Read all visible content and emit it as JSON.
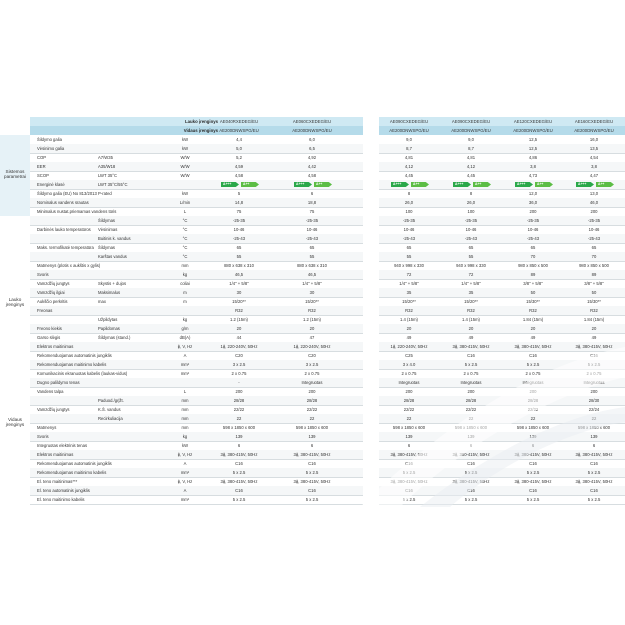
{
  "header": {
    "outdoor_label": "Lauko įrenginys",
    "indoor_label": "Vidaus įrenginys",
    "outdoor_models": [
      "AE040RXEDEG/EU",
      "AE060CXEDEG/EU",
      "AE090CXEDEG/EU",
      "AE090CXEDEG/EU",
      "AE120CXEDEG/EU",
      "AE160CXEDEG/EU"
    ],
    "indoor_models": [
      "AE200DNWSPG/EU",
      "AE200DNWSPG/EU",
      "AE200DNWSPG/EU",
      "AE200DNWSPG/EU",
      "AE200DNWSPG/EU",
      "AE200DNWSPG/EU"
    ]
  },
  "sections": {
    "system": "Sistemos parametrai",
    "outdoor": "Lauko įrenginys",
    "indoor": "Vidaus įrenginys"
  },
  "rows": [
    {
      "l1": "Šildymo galia",
      "l2": "",
      "unit": "kW",
      "v": [
        "4,4",
        "6,0",
        "9,0",
        "9,0",
        "12,5",
        "16,0"
      ]
    },
    {
      "l1": "Vėsinimo galia",
      "l2": "",
      "unit": "kW",
      "v": [
        "5,0",
        "6,5",
        "8,7",
        "8,7",
        "12,5",
        "13,5"
      ]
    },
    {
      "l1": "COP",
      "l2": "A7/W35",
      "unit": "W/W",
      "v": [
        "5,2",
        "4,92",
        "4,81",
        "4,81",
        "4,86",
        "4,54"
      ]
    },
    {
      "l1": "EER",
      "l2": "A35/W18",
      "unit": "W/W",
      "v": [
        "4,59",
        "4,42",
        "4,12",
        "4,12",
        "3,8",
        "3,8"
      ]
    },
    {
      "l1": "SCOP",
      "l2": "LWT 35°C",
      "unit": "W/W",
      "v": [
        "4,58",
        "4,58",
        "4,45",
        "4,45",
        "4,73",
        "4,47"
      ]
    },
    {
      "l1": "Energinė klasė",
      "l2": "LWT 35°C/55°C",
      "unit": "",
      "v": [
        "",
        "",
        "",
        "",
        "",
        ""
      ],
      "badges": true
    },
    {
      "l1": "Šildymo galia (EU) No 813/2013",
      "l2": "P-rated",
      "unit": "kW",
      "v": [
        "5",
        "6",
        "8",
        "8",
        "12,0",
        "13,0"
      ]
    },
    {
      "l1": "Nominalus vandens srautas",
      "l2": "",
      "unit": "L/min",
      "v": [
        "14,8",
        "18,8",
        "26,0",
        "26,0",
        "36,0",
        "46,0"
      ]
    },
    {
      "l1": "Minimalus nustat.priemamas vandens tūris",
      "l2": "",
      "unit": "L",
      "v": [
        "75",
        "75",
        "100",
        "100",
        "200",
        "200"
      ]
    },
    {
      "l1": "",
      "l2": "Šildymas",
      "unit": "°C",
      "v": [
        "-25-35",
        "-25-35",
        "-25-35",
        "-25-35",
        "-25-35",
        "-25-35"
      ]
    },
    {
      "l1": "Darbinės lauko temperatūros",
      "l2": "Vėsinimas",
      "unit": "°C",
      "v": [
        "10-46",
        "10-46",
        "10-46",
        "10-46",
        "10-46",
        "10-46"
      ]
    },
    {
      "l1": "",
      "l2": "Buitinis k. vandus",
      "unit": "°C",
      "v": [
        "-25-43",
        "-25-43",
        "-25-43",
        "-25-43",
        "-25-43",
        "-25-43"
      ]
    },
    {
      "l1": "Maks. termofikatė temperatūra",
      "l2": "Šildymas",
      "unit": "°C",
      "v": [
        "65",
        "65",
        "65",
        "65",
        "65",
        "65"
      ]
    },
    {
      "l1": "",
      "l2": "Karštas vandus",
      "unit": "°C",
      "v": [
        "55",
        "55",
        "55",
        "55",
        "70",
        "70"
      ]
    },
    {
      "l1": "Matmenys (plotis x aukštis x gylis)",
      "l2": "",
      "unit": "mm",
      "v": [
        "880 x 638 x 310",
        "880 x 638 x 310",
        "940 x 998 x 330",
        "940 x 998 x 330",
        "980 x 850 x 500",
        "980 x 850 x 500"
      ]
    },
    {
      "l1": "Svoris",
      "l2": "",
      "unit": "kg",
      "v": [
        "46,5",
        "46,5",
        "72",
        "72",
        "89",
        "89"
      ]
    },
    {
      "l1": "Vamzdžių jungtys",
      "l2": "Skystis + dujos",
      "unit": "coliai",
      "v": [
        "1/4\" + 5/8\"",
        "1/4\" + 5/8\"",
        "1/4\" + 5/8\"",
        "1/4\" + 5/8\"",
        "3/8\" + 5/8\"",
        "3/8\" + 5/8\""
      ]
    },
    {
      "l1": "Vamzdžių ilgiai",
      "l2": "Maksimalus",
      "unit": "m",
      "v": [
        "30",
        "30",
        "35",
        "35",
        "50",
        "50"
      ]
    },
    {
      "l1": "Aukščio perkritis",
      "l2": "max",
      "unit": "m",
      "v": [
        "15/20**",
        "15/20**",
        "15/20**",
        "15/20**",
        "15/30**",
        "15/30**"
      ]
    },
    {
      "l1": "Freonas",
      "l2": "",
      "unit": "",
      "v": [
        "R32",
        "R32",
        "R32",
        "R32",
        "R32",
        "R32"
      ]
    },
    {
      "l1": "",
      "l2": "Užpildytas",
      "unit": "kg",
      "v": [
        "1.2 (15m)",
        "1.2 (15m)",
        "1.4 (15m)",
        "1.4 (15m)",
        "1.84 (15m)",
        "1.84 (15m)"
      ]
    },
    {
      "l1": "Freono kiekis",
      "l2": "Papildomas",
      "unit": "g/m",
      "v": [
        "20",
        "20",
        "20",
        "20",
        "20",
        "20"
      ]
    },
    {
      "l1": "Garso slėgis",
      "l2": "Šildymas (stand.)",
      "unit": "dB(A)",
      "v": [
        "44",
        "47",
        "49",
        "49",
        "49",
        "49"
      ]
    },
    {
      "l1": "Elektros maitinimas",
      "l2": "",
      "unit": "ϕ, V, Hz",
      "v": [
        "1ϕ, 220-240V, 50Hz",
        "1ϕ, 220-240V, 50Hz",
        "1ϕ, 220-240V, 50Hz",
        "3ϕ, 380-415V, 50Hz",
        "3ϕ, 380-415V, 50Hz",
        "3ϕ, 380-415V, 50Hz"
      ]
    },
    {
      "l1": "Rekomenduojamas automatinis jungiklis",
      "l2": "",
      "unit": "A",
      "v": [
        "C20",
        "C20",
        "C25",
        "C16",
        "C16",
        "C16"
      ]
    },
    {
      "l1": "Rekomenduojamas maitinimo kabelis",
      "l2": "",
      "unit": "mm²",
      "v": [
        "3 x 2.5",
        "3 x 2.5",
        "3 x 4.0",
        "5 x 2.5",
        "5 x 2.5",
        "5 x 2.5"
      ]
    },
    {
      "l1": "Komunikacinis ekranuotas kabelis (laukas-vidus)",
      "l2": "",
      "unit": "mm²",
      "v": [
        "2 x 0.75",
        "2 x 0.75",
        "2 x 0.75",
        "2 x 0.75",
        "2 x 0.75",
        "2 x 0.75"
      ]
    },
    {
      "l1": "Dugno palildymo tenas",
      "l2": "",
      "unit": "",
      "v": [
        "-",
        "Integruotas",
        "Integruotas",
        "Integruotas",
        "Integruotas",
        "Integruotas"
      ]
    },
    {
      "l1": "Vandens talpa",
      "l2": "",
      "unit": "L",
      "v": [
        "200",
        "200",
        "200",
        "200",
        "200",
        "200"
      ]
    },
    {
      "l1": "",
      "l2": "Paduod./grįžt.",
      "unit": "mm",
      "v": [
        "28/28",
        "28/28",
        "28/28",
        "28/28",
        "28/28",
        "28/30"
      ]
    },
    {
      "l1": "Vamzdžių jungtys",
      "l2": "K.Š. vandus",
      "unit": "mm",
      "v": [
        "22/22",
        "22/22",
        "22/22",
        "22/22",
        "22/22",
        "22/24"
      ]
    },
    {
      "l1": "",
      "l2": "Recirkuliacija",
      "unit": "mm",
      "v": [
        "22",
        "22",
        "22",
        "22",
        "22",
        "22"
      ]
    },
    {
      "l1": "Matmenys",
      "l2": "",
      "unit": "mm",
      "v": [
        "598 x 1850 x 600",
        "598 x 1850 x 600",
        "598 x 1850 x 600",
        "598 x 1850 x 600",
        "598 x 1850 x 600",
        "598 x 1850 x 600"
      ]
    },
    {
      "l1": "Svoris",
      "l2": "",
      "unit": "kg",
      "v": [
        "139",
        "139",
        "139",
        "139",
        "139",
        "139"
      ]
    },
    {
      "l1": "Integruotas elektrinis tenas",
      "l2": "",
      "unit": "kW",
      "v": [
        "6",
        "6",
        "6",
        "6",
        "6",
        "6"
      ]
    },
    {
      "l1": "Elektros maitinimas",
      "l2": "",
      "unit": "ϕ, V, Hz",
      "v": [
        "3ϕ, 380-415V, 50Hz",
        "3ϕ, 380-415V, 50Hz",
        "3ϕ, 380-415V, 50Hz",
        "3ϕ, 380-415V, 50Hz",
        "3ϕ, 380-415V, 50Hz",
        "3ϕ, 380-415V, 50Hz"
      ]
    },
    {
      "l1": "Rekomenduojamas automatinis jungiklis",
      "l2": "",
      "unit": "A",
      "v": [
        "C16",
        "C16",
        "C16",
        "C16",
        "C16",
        "C16"
      ]
    },
    {
      "l1": "Rekomenduojamas maitinimo kabelis",
      "l2": "",
      "unit": "mm²",
      "v": [
        "5 x 2.5",
        "5 x 2.5",
        "5 x 2.5",
        "5 x 2.5",
        "5 x 2.5",
        "5 x 2.5"
      ]
    },
    {
      "l1": "El. teno maitinimas***",
      "l2": "",
      "unit": "ϕ, V, Hz",
      "v": [
        "3ϕ, 380-415V, 50Hz",
        "3ϕ, 380-415V, 50Hz",
        "3ϕ, 380-415V, 50Hz",
        "3ϕ, 380-415V, 50Hz",
        "3ϕ, 380-415V, 50Hz",
        "3ϕ, 380-415V, 50Hz"
      ]
    },
    {
      "l1": "El. teno automatinis jungiklis",
      "l2": "",
      "unit": "A",
      "v": [
        "C16",
        "C16",
        "C16",
        "C16",
        "C16",
        "C16"
      ]
    },
    {
      "l1": "El. teno maitinimo kabelis",
      "l2": "",
      "unit": "mm²",
      "v": [
        "5 x 2.5",
        "5 x 2.5",
        "5 x 2.5",
        "5 x 2.5",
        "5 x 2.5",
        "5 x 2.5"
      ]
    }
  ],
  "badges": {
    "first": "A+++",
    "second": "A++"
  },
  "colors": {
    "header_band": "#cfe9f3",
    "header_band_dark": "#b5dbea",
    "section_bg": "#e6f2f7",
    "badge_green": "#2aa84a",
    "badge_green_light": "#5cbd45"
  }
}
